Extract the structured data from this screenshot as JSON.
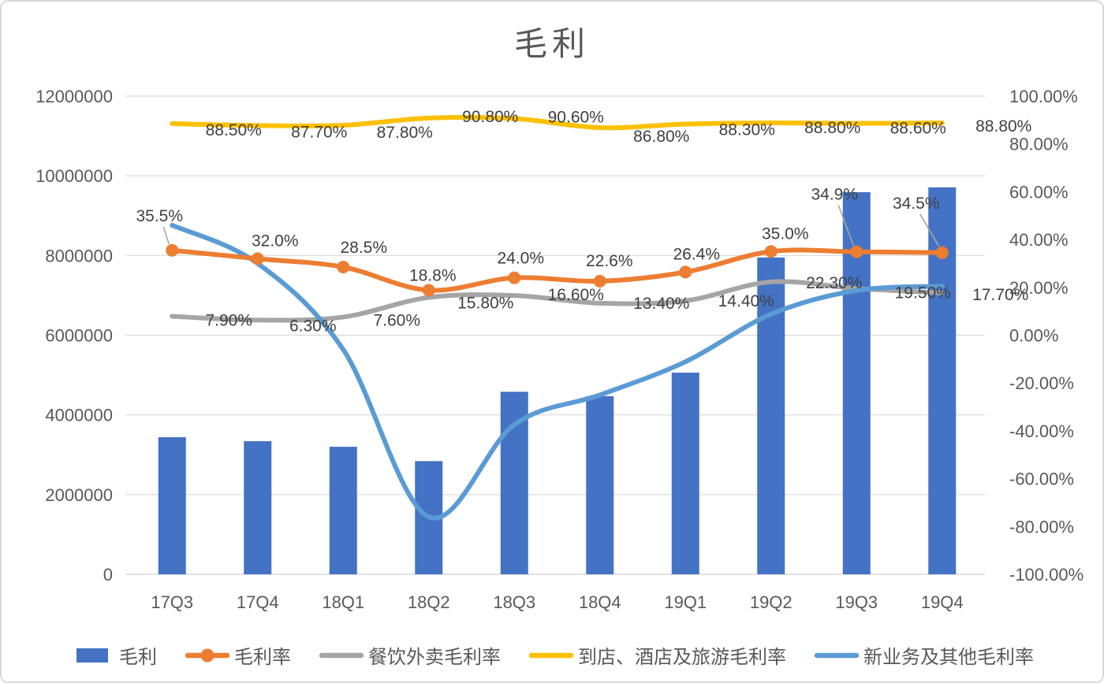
{
  "chart_data": {
    "type": "combo",
    "title": "毛利",
    "categories": [
      "17Q3",
      "17Q4",
      "18Q1",
      "18Q2",
      "18Q3",
      "18Q4",
      "19Q1",
      "19Q2",
      "19Q3",
      "19Q4"
    ],
    "bar_series": {
      "name": "毛利",
      "axis": "left",
      "color": "#4472C4",
      "values": [
        3440000,
        3340000,
        3200000,
        2840000,
        4580000,
        4470000,
        5060000,
        7950000,
        9590000,
        9710000
      ]
    },
    "line_series": [
      {
        "name": "毛利率",
        "axis": "right",
        "color": "#ED7D31",
        "marker": true,
        "values": [
          35.5,
          32.0,
          28.5,
          18.8,
          24.0,
          22.6,
          26.4,
          35.0,
          34.9,
          34.5
        ],
        "labels": [
          "35.5%",
          "32.0%",
          "28.5%",
          "18.8%",
          "24.0%",
          "22.6%",
          "26.4%",
          "35.0%",
          "34.9%",
          "34.5%"
        ]
      },
      {
        "name": "餐饮外卖毛利率",
        "axis": "right",
        "color": "#A5A5A5",
        "marker": false,
        "values": [
          7.9,
          6.3,
          7.6,
          15.8,
          16.6,
          13.4,
          14.4,
          22.3,
          19.5,
          17.7
        ],
        "labels": [
          "7.90%",
          "6.30%",
          "7.60%",
          "15.80%",
          "16.60%",
          "13.40%",
          "14.40%",
          "22.30%",
          "19.50%",
          "17.70%"
        ]
      },
      {
        "name": "到店、酒店及旅游毛利率",
        "axis": "right",
        "color": "#FFC000",
        "marker": false,
        "values": [
          88.5,
          87.7,
          87.8,
          90.8,
          90.6,
          86.8,
          88.3,
          88.8,
          88.6,
          88.8
        ],
        "labels": [
          "88.50%",
          "87.70%",
          "87.80%",
          "90.80%",
          "90.60%",
          "86.80%",
          "88.30%",
          "88.80%",
          "88.60%",
          "88.80%"
        ]
      },
      {
        "name": "新业务及其他毛利率",
        "axis": "right",
        "color": "#5B9BD5",
        "marker": false,
        "values": [
          46,
          30,
          -6,
          -76,
          -37.4,
          -25,
          -11.1,
          8.8,
          18.7,
          20.5
        ],
        "labels": []
      }
    ],
    "left_axis": {
      "min": 0,
      "max": 12000000,
      "step": 2000000,
      "tick_labels": [
        "0",
        "2000000",
        "4000000",
        "6000000",
        "8000000",
        "10000000",
        "12000000"
      ]
    },
    "right_axis": {
      "min": -100,
      "max": 100,
      "step": 20,
      "tick_labels": [
        "-100.00%",
        "-80.00%",
        "-60.00%",
        "-40.00%",
        "-20.00%",
        "0.00%",
        "20.00%",
        "40.00%",
        "60.00%",
        "80.00%",
        "100.00%"
      ]
    },
    "grid": true,
    "legend_position": "bottom",
    "legend": [
      {
        "label": "毛利",
        "type": "bar",
        "color": "#4472C4"
      },
      {
        "label": "毛利率",
        "type": "line-marker",
        "color": "#ED7D31"
      },
      {
        "label": "餐饮外卖毛利率",
        "type": "line",
        "color": "#A5A5A5"
      },
      {
        "label": "到店、酒店及旅游毛利率",
        "type": "line",
        "color": "#FFC000"
      },
      {
        "label": "新业务及其他毛利率",
        "type": "line",
        "color": "#5B9BD5"
      }
    ],
    "colors": {
      "grid": "#D9D9D9",
      "axis_text": "#595959",
      "data_label_text": "#404040",
      "leader_line": "#A6A6A6"
    }
  }
}
